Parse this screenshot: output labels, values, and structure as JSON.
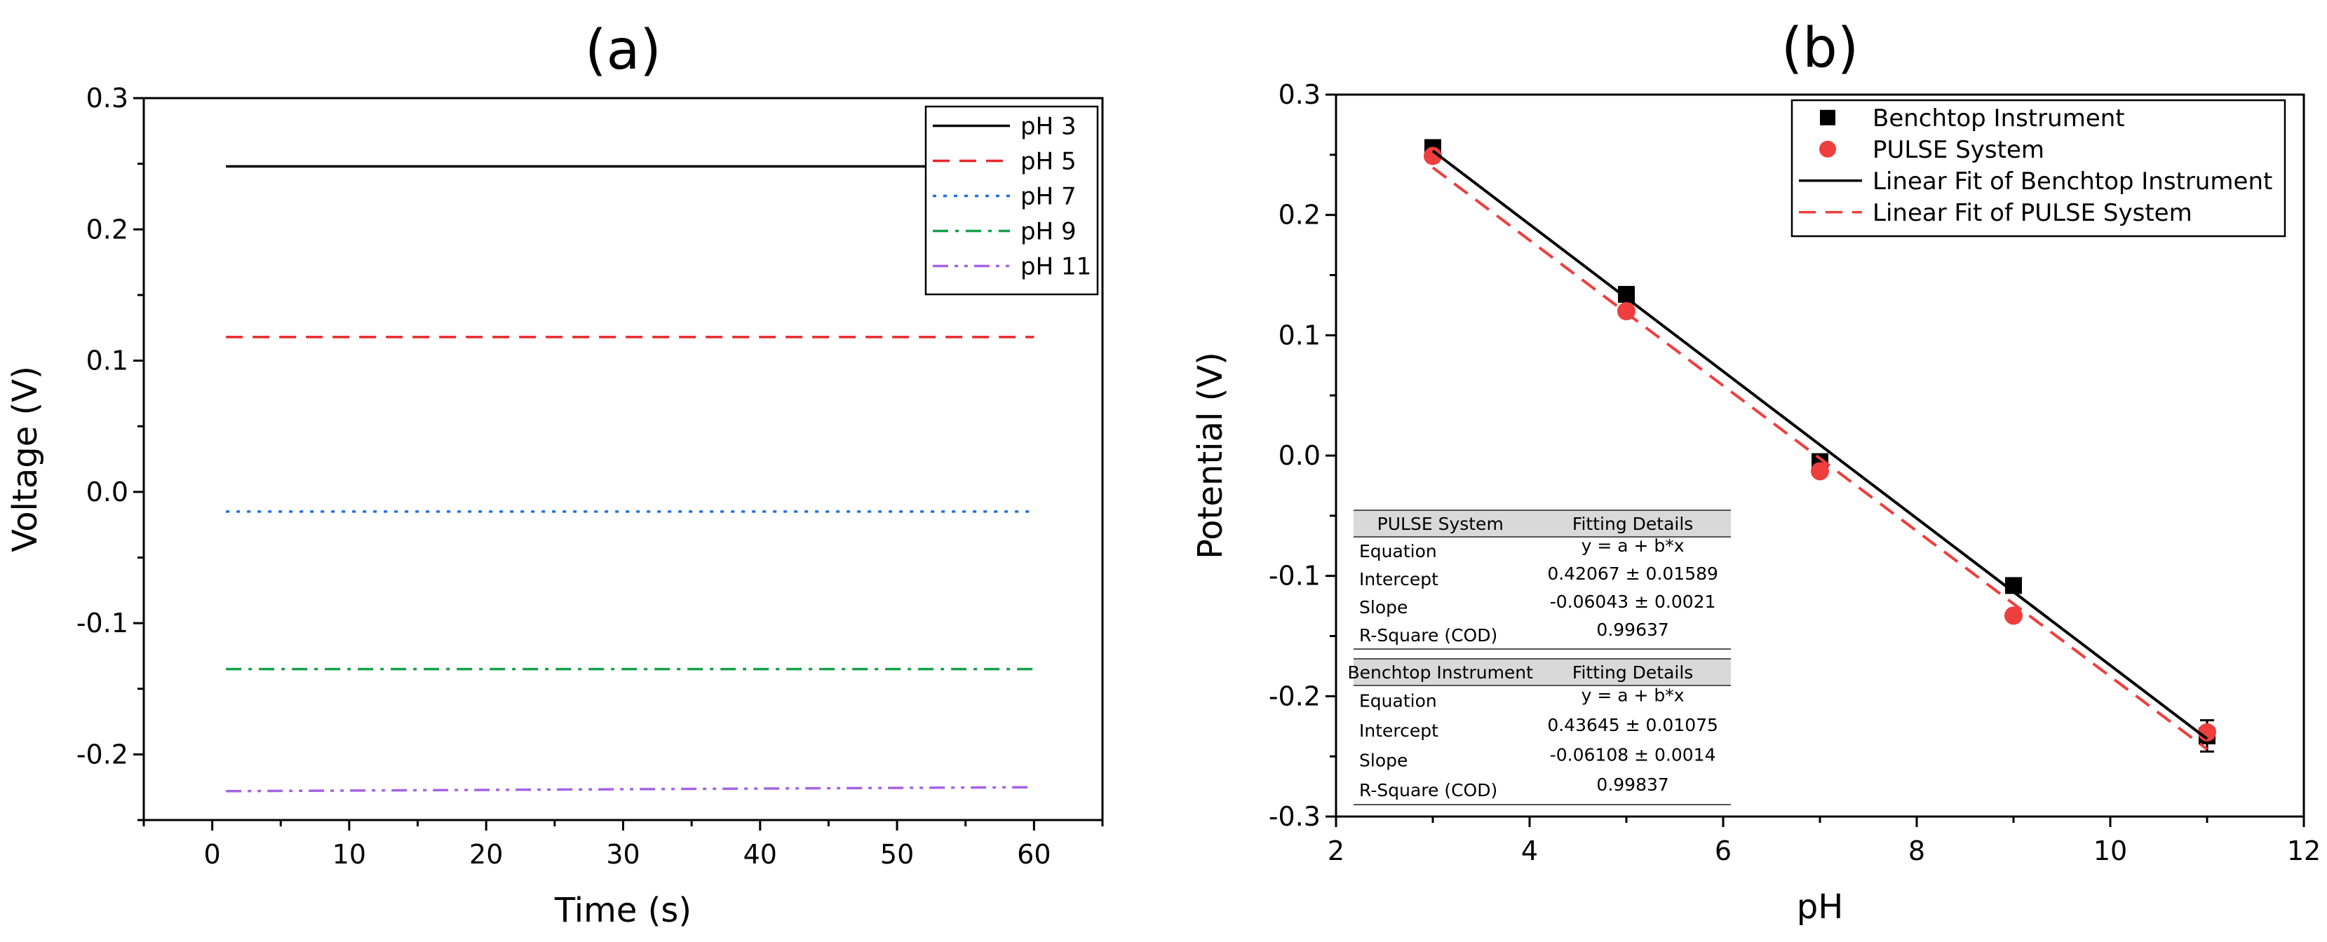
{
  "chart_data": [
    {
      "id": "a",
      "type": "line",
      "title": "(a)",
      "xlabel": "Time (s)",
      "ylabel": "Voltage (V)",
      "xlim": [
        -5,
        65
      ],
      "ylim": [
        -0.25,
        0.3
      ],
      "xticks": [
        0,
        10,
        20,
        30,
        40,
        50,
        60
      ],
      "xtick_labels": [
        "0",
        "10",
        "20",
        "30",
        "40",
        "50",
        "60"
      ],
      "yticks": [
        -0.2,
        -0.1,
        0.0,
        0.1,
        0.2,
        0.3
      ],
      "ytick_labels": [
        "-0.2",
        "-0.1",
        "0.0",
        "0.1",
        "0.2",
        "0.3"
      ],
      "legend_position": "top-right",
      "series": [
        {
          "name": "pH 3",
          "color": "#000000",
          "dash": "solid",
          "x": [
            1,
            60
          ],
          "values": [
            0.248,
            0.248
          ]
        },
        {
          "name": "pH 5",
          "color": "#e8292b",
          "dash": "dash",
          "x": [
            1,
            60
          ],
          "values": [
            0.118,
            0.118
          ]
        },
        {
          "name": "pH 7",
          "color": "#1f6fe5",
          "dash": "dot",
          "x": [
            1,
            60
          ],
          "values": [
            -0.015,
            -0.015
          ]
        },
        {
          "name": "pH 9",
          "color": "#14a04a",
          "dash": "dashdot",
          "x": [
            1,
            60
          ],
          "values": [
            -0.135,
            -0.135
          ]
        },
        {
          "name": "pH 11",
          "color": "#a463e6",
          "dash": "dashdotdot",
          "x": [
            1,
            60
          ],
          "values": [
            -0.228,
            -0.225
          ]
        }
      ]
    },
    {
      "id": "b",
      "type": "scatter",
      "title": "(b)",
      "xlabel": "pH",
      "ylabel": "Potential (V)",
      "xlim": [
        2,
        12
      ],
      "ylim": [
        -0.3,
        0.3
      ],
      "xticks": [
        2,
        4,
        6,
        8,
        10,
        12
      ],
      "xtick_labels": [
        "2",
        "4",
        "6",
        "8",
        "10",
        "12"
      ],
      "yticks": [
        -0.3,
        -0.2,
        -0.1,
        0.0,
        0.1,
        0.2,
        0.3
      ],
      "ytick_labels": [
        "-0.3",
        "-0.2",
        "-0.1",
        "0.0",
        "0.1",
        "0.2",
        "0.3"
      ],
      "legend_position": "top-right",
      "series": [
        {
          "name": "Benchtop Instrument",
          "kind": "points",
          "marker": "square",
          "color": "#000000",
          "x": [
            3,
            5,
            7,
            9,
            11
          ],
          "values": [
            0.256,
            0.134,
            -0.005,
            -0.108,
            -0.233
          ],
          "errors": [
            0,
            0,
            0,
            0,
            0.013
          ]
        },
        {
          "name": "PULSE System",
          "kind": "points",
          "marker": "circle",
          "color": "#ef3e3e",
          "x": [
            3,
            5,
            7,
            9,
            11
          ],
          "values": [
            0.249,
            0.12,
            -0.013,
            -0.133,
            -0.23
          ],
          "errors": [
            0,
            0,
            0,
            0,
            0
          ]
        },
        {
          "name": "Linear Fit of Benchtop Instrument",
          "kind": "fit",
          "color": "#000000",
          "dash": "solid",
          "intercept": 0.43645,
          "slope": -0.06108,
          "x_range": [
            3,
            11
          ]
        },
        {
          "name": "Linear Fit of PULSE System",
          "kind": "fit",
          "color": "#ef3e3e",
          "dash": "dash",
          "intercept": 0.42067,
          "slope": -0.06043,
          "x_range": [
            3,
            11
          ]
        }
      ],
      "fit_tables": [
        {
          "header": [
            "PULSE System",
            "Fitting Details"
          ],
          "rows": [
            [
              "Equation",
              "y = a + b*x"
            ],
            [
              "Intercept",
              "0.42067 ± 0.01589"
            ],
            [
              "Slope",
              "-0.06043 ± 0.0021"
            ],
            [
              "R-Square (COD)",
              "0.99637"
            ]
          ]
        },
        {
          "header": [
            "Benchtop Instrument",
            "Fitting Details"
          ],
          "rows": [
            [
              "Equation",
              "y = a + b*x"
            ],
            [
              "Intercept",
              "0.43645 ± 0.01075"
            ],
            [
              "Slope",
              "-0.06108 ± 0.0014"
            ],
            [
              "R-Square (COD)",
              "0.99837"
            ]
          ]
        }
      ]
    }
  ]
}
